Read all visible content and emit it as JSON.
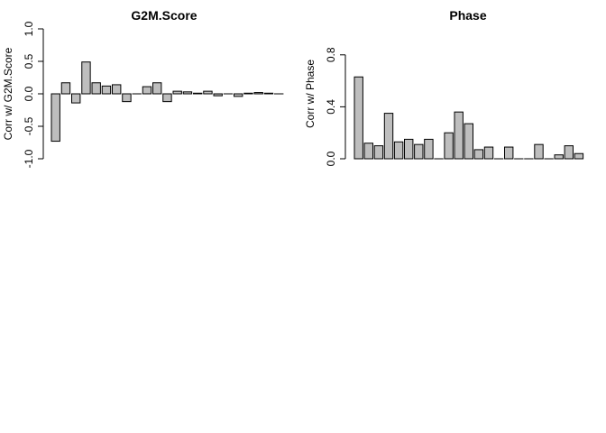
{
  "chart_data": [
    {
      "type": "bar",
      "title": "G2M.Score",
      "xlabel": "",
      "ylabel": "Corr w/ G2M.Score",
      "ylim": [
        -1.0,
        1.0
      ],
      "yticks": [
        "-1.0",
        "-0.5",
        "0.0",
        "0.5",
        "1.0"
      ],
      "yticks_values": [
        -1.0,
        -0.5,
        0.0,
        0.5,
        1.0
      ],
      "bar_fill": "#bebebe",
      "values": [
        -0.73,
        0.17,
        -0.14,
        0.49,
        0.17,
        0.12,
        0.14,
        -0.12,
        0.0,
        0.11,
        0.17,
        -0.12,
        0.04,
        0.03,
        0.01,
        0.04,
        -0.03,
        0.0,
        -0.04,
        0.01,
        0.02,
        0.01,
        0.0
      ]
    },
    {
      "type": "bar",
      "title": "Phase",
      "xlabel": "",
      "ylabel": "Corr w/ Phase",
      "ylim": [
        0.0,
        1.0
      ],
      "yticks": [
        "0.0",
        "0.4",
        "0.8"
      ],
      "yticks_values": [
        0.0,
        0.4,
        0.8
      ],
      "bar_fill": "#bebebe",
      "values": [
        0.63,
        0.12,
        0.1,
        0.35,
        0.13,
        0.15,
        0.11,
        0.15,
        0.0,
        0.2,
        0.36,
        0.27,
        0.07,
        0.09,
        0.0,
        0.09,
        0.0,
        0.0,
        0.11,
        0.0,
        0.03,
        0.1,
        0.04
      ]
    }
  ]
}
